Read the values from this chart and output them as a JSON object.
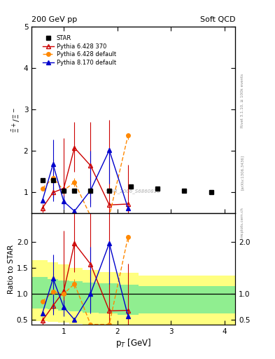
{
  "title_left": "200 GeV pp",
  "title_right": "Soft QCD",
  "ylabel_main": "$\\bar{\\Xi}^+/\\Xi^-$",
  "ylabel_ratio": "Ratio to STAR",
  "xlabel": "p$_T$ [GeV]",
  "right_label_top": "Rivet 3.1.10, ≥ 100k events",
  "arxiv": "[arXiv:1306.3436]",
  "mcplots": "mcplots.cern.ch",
  "watermark": "STAR_2006_S6860818",
  "star_x": [
    0.6,
    0.8,
    1.0,
    1.2,
    1.5,
    1.85,
    2.25,
    2.75,
    3.25,
    3.75
  ],
  "star_y": [
    1.3,
    1.3,
    1.05,
    1.05,
    1.05,
    1.05,
    1.15,
    1.1,
    1.05,
    1.0
  ],
  "p6370_x": [
    0.6,
    0.8,
    1.0,
    1.2,
    1.5,
    1.85,
    2.2
  ],
  "p6370_y": [
    0.62,
    1.0,
    1.1,
    2.08,
    1.65,
    0.7,
    0.72
  ],
  "p6370_yerr_lo": [
    0.1,
    0.12,
    0.35,
    0.58,
    0.92,
    0.28,
    0.28
  ],
  "p6370_yerr_hi": [
    0.1,
    0.12,
    1.22,
    0.62,
    1.05,
    2.05,
    0.95
  ],
  "p6def_x": [
    0.6,
    0.8,
    1.0,
    1.2,
    1.5,
    1.85,
    2.2
  ],
  "p6def_y": [
    1.1,
    1.35,
    1.05,
    1.25,
    0.43,
    0.43,
    2.38
  ],
  "p6def_yerr_lo": [
    0.05,
    0.45,
    0.05,
    0.1,
    0.05,
    0.05,
    0.1
  ],
  "p6def_yerr_hi": [
    0.05,
    0.45,
    0.05,
    0.1,
    0.05,
    0.05,
    0.05
  ],
  "p8def_x": [
    0.6,
    0.8,
    1.0,
    1.2,
    1.5,
    1.85,
    2.2
  ],
  "p8def_y": [
    0.8,
    1.68,
    0.78,
    0.55,
    1.05,
    2.02,
    0.62
  ],
  "p8def_yerr_lo": [
    0.05,
    0.9,
    0.18,
    0.05,
    0.4,
    0.8,
    0.05
  ],
  "p8def_yerr_hi": [
    0.05,
    0.6,
    0.15,
    0.05,
    0.95,
    0.05,
    0.05
  ],
  "ratio_p6370_x": [
    0.6,
    0.8,
    1.0,
    1.2,
    1.5,
    1.85,
    2.2
  ],
  "ratio_p6370_y": [
    0.48,
    0.77,
    1.05,
    1.97,
    1.57,
    0.67,
    0.68
  ],
  "ratio_p6370_yerr_lo": [
    0.08,
    0.09,
    0.33,
    0.55,
    0.88,
    0.27,
    0.27
  ],
  "ratio_p6370_yerr_hi": [
    0.08,
    0.09,
    1.16,
    0.59,
    1.0,
    1.95,
    0.9
  ],
  "ratio_p6def_x": [
    0.6,
    0.8,
    1.0,
    1.2,
    1.5,
    1.85,
    2.2
  ],
  "ratio_p6def_y": [
    0.85,
    1.04,
    1.0,
    1.19,
    0.41,
    0.41,
    2.09
  ],
  "ratio_p6def_yerr_lo": [
    0.04,
    0.35,
    0.04,
    0.09,
    0.04,
    0.04,
    0.09
  ],
  "ratio_p6def_yerr_hi": [
    0.04,
    0.35,
    0.04,
    0.09,
    0.04,
    0.04,
    0.04
  ],
  "ratio_p8def_x": [
    0.6,
    0.8,
    1.0,
    1.2,
    1.5,
    1.85,
    2.2
  ],
  "ratio_p8def_y": [
    0.62,
    1.29,
    0.74,
    0.5,
    1.0,
    1.97,
    0.57
  ],
  "ratio_p8def_yerr_lo": [
    0.04,
    0.69,
    0.17,
    0.04,
    0.38,
    0.78,
    0.04
  ],
  "ratio_p8def_yerr_hi": [
    0.04,
    0.46,
    0.14,
    0.04,
    0.9,
    0.02,
    0.04
  ],
  "band_x_edges": [
    0.4,
    0.7,
    0.9,
    1.1,
    1.35,
    1.65,
    2.0,
    2.4,
    2.8,
    3.2,
    3.6,
    4.2
  ],
  "band_green_lo": [
    0.72,
    0.7,
    0.68,
    0.66,
    0.64,
    0.62,
    0.6,
    0.62,
    0.62,
    0.62,
    0.62
  ],
  "band_green_hi": [
    1.32,
    1.28,
    1.26,
    1.24,
    1.22,
    1.2,
    1.18,
    1.15,
    1.15,
    1.15,
    1.15
  ],
  "band_yellow_lo": [
    0.47,
    0.46,
    0.44,
    0.42,
    0.4,
    0.38,
    0.36,
    0.38,
    0.38,
    0.38,
    0.38
  ],
  "band_yellow_hi": [
    1.65,
    1.6,
    1.56,
    1.5,
    1.46,
    1.42,
    1.4,
    1.35,
    1.35,
    1.35,
    1.35
  ],
  "color_star": "#000000",
  "color_p6370": "#cc0000",
  "color_p6def": "#ff8800",
  "color_p8def": "#0000cc",
  "ylim_main": [
    0.5,
    5.0
  ],
  "ylim_ratio": [
    0.4,
    2.55
  ],
  "xlim": [
    0.4,
    4.2
  ],
  "yticks_main": [
    1,
    2,
    3,
    4,
    5
  ],
  "yticks_ratio": [
    0.5,
    1.0,
    1.5,
    2.0
  ],
  "xticks": [
    1,
    2,
    3,
    4
  ]
}
